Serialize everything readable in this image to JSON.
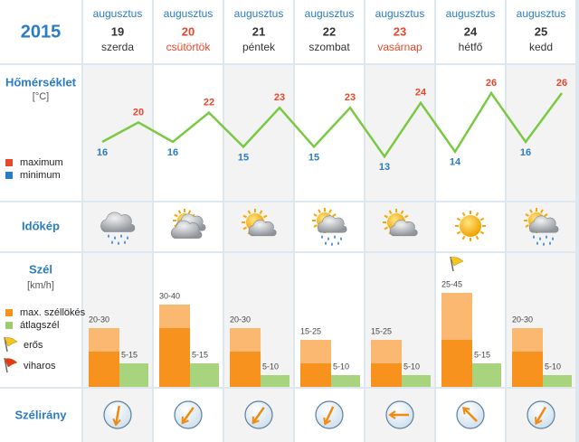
{
  "year": "2015",
  "rows": {
    "temperature": "Hőmérséklet",
    "temperature_unit": "[°C]",
    "sky": "Időkép",
    "wind": "Szél",
    "wind_unit": "[km/h]",
    "direction": "Szélirány"
  },
  "legend": {
    "maximum": "maximum",
    "minimum": "minimum",
    "gust": "max. széllökés",
    "average": "átlagszél",
    "strong": "erős",
    "storm": "viharos"
  },
  "days": [
    {
      "month": "augusztus",
      "day": "19",
      "weekday": "szerda",
      "holiday": false,
      "min": 16,
      "max": 20,
      "icon": "rain",
      "gust_low": 20,
      "gust_high": 30,
      "gust_label": "20-30",
      "avg_low": 5,
      "avg_high": 15,
      "avg_label": "5-15",
      "strong_wind": false,
      "wind_dir": 190
    },
    {
      "month": "augusztus",
      "day": "20",
      "weekday": "csütörtök",
      "holiday": true,
      "min": 16,
      "max": 22,
      "icon": "cloudy-sun",
      "gust_low": 30,
      "gust_high": 40,
      "gust_label": "30-40",
      "avg_low": 5,
      "avg_high": 15,
      "avg_label": "5-15",
      "strong_wind": false,
      "wind_dir": 215
    },
    {
      "month": "augusztus",
      "day": "21",
      "weekday": "péntek",
      "holiday": false,
      "min": 15,
      "max": 23,
      "icon": "sun-cloud",
      "gust_low": 20,
      "gust_high": 30,
      "gust_label": "20-30",
      "avg_low": 5,
      "avg_high": 10,
      "avg_label": "5-10",
      "strong_wind": false,
      "wind_dir": 215
    },
    {
      "month": "augusztus",
      "day": "22",
      "weekday": "szombat",
      "holiday": false,
      "min": 15,
      "max": 23,
      "icon": "sun-cloud-rain",
      "gust_low": 15,
      "gust_high": 25,
      "gust_label": "15-25",
      "avg_low": 5,
      "avg_high": 10,
      "avg_label": "5-10",
      "strong_wind": false,
      "wind_dir": 205
    },
    {
      "month": "augusztus",
      "day": "23",
      "weekday": "vasárnap",
      "holiday": true,
      "min": 13,
      "max": 24,
      "icon": "sun-cloud",
      "gust_low": 15,
      "gust_high": 25,
      "gust_label": "15-25",
      "avg_low": 5,
      "avg_high": 10,
      "avg_label": "5-10",
      "strong_wind": false,
      "wind_dir": 270
    },
    {
      "month": "augusztus",
      "day": "24",
      "weekday": "hétfő",
      "holiday": false,
      "min": 14,
      "max": 26,
      "icon": "sun",
      "gust_low": 25,
      "gust_high": 45,
      "gust_label": "25-45",
      "avg_low": 5,
      "avg_high": 15,
      "avg_label": "5-15",
      "strong_wind": true,
      "wind_dir": 315
    },
    {
      "month": "augusztus",
      "day": "25",
      "weekday": "kedd",
      "holiday": false,
      "min": 16,
      "max": 26,
      "icon": "sun-cloud-rain",
      "gust_low": 20,
      "gust_high": 30,
      "gust_label": "20-30",
      "avg_low": 5,
      "avg_high": 10,
      "avg_label": "5-10",
      "strong_wind": false,
      "wind_dir": 210
    }
  ]
}
